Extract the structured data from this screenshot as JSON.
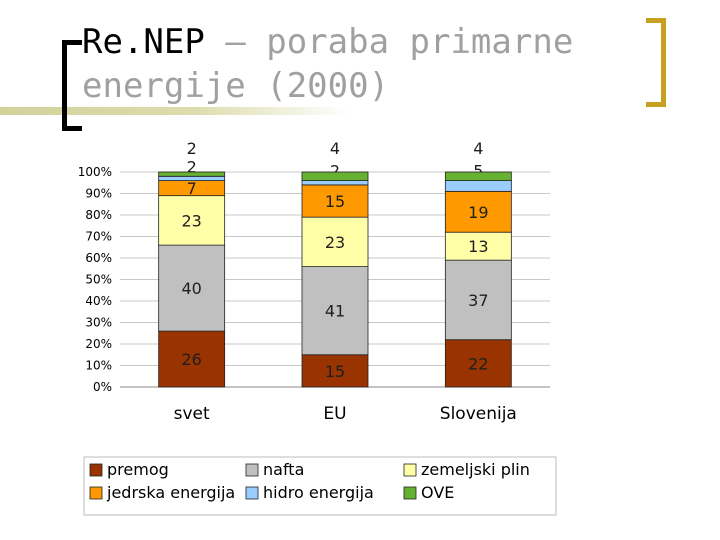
{
  "slide": {
    "title_main": "Re.NEP",
    "title_rest_line1": " – poraba primarne",
    "title_line2": "energije (2000)"
  },
  "chart_data": {
    "type": "bar",
    "stacked": true,
    "categories": [
      "svet",
      "EU",
      "Slovenija"
    ],
    "series": [
      {
        "name": "premog",
        "color": "#993300",
        "values": [
          26,
          15,
          22
        ]
      },
      {
        "name": "nafta",
        "color": "#c0c0c0",
        "values": [
          40,
          41,
          37
        ]
      },
      {
        "name": "zemeljski plin",
        "color": "#ffffa8",
        "values": [
          23,
          23,
          13
        ]
      },
      {
        "name": "jedrska energija",
        "color": "#ff9900",
        "values": [
          7,
          15,
          19
        ]
      },
      {
        "name": "hidro energija",
        "color": "#99ccff",
        "values": [
          2,
          2,
          5
        ]
      },
      {
        "name": "OVE",
        "color": "#66b032",
        "values": [
          2,
          4,
          4
        ]
      }
    ],
    "y_ticks": [
      "0%",
      "10%",
      "20%",
      "30%",
      "40%",
      "50%",
      "60%",
      "70%",
      "80%",
      "90%",
      "100%"
    ],
    "ylim": [
      0,
      100
    ],
    "grid": true,
    "legend_position": "bottom"
  }
}
